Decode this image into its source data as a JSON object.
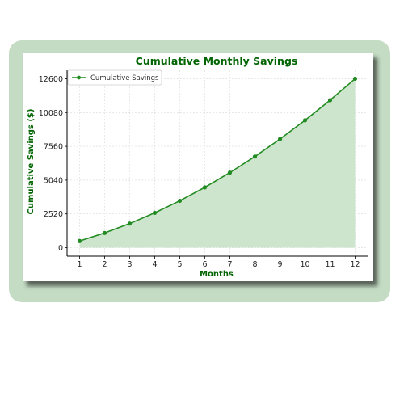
{
  "chart_data": {
    "type": "area",
    "title": "Cumulative Monthly Savings",
    "xlabel": "Months",
    "ylabel": "Cumulative Savings ($)",
    "x": [
      1,
      2,
      3,
      4,
      5,
      6,
      7,
      8,
      9,
      10,
      11,
      12
    ],
    "series": [
      {
        "name": "Cumulative Savings",
        "values": [
          500,
          1100,
          1800,
          2600,
          3500,
          4500,
          5600,
          6800,
          8100,
          9500,
          11000,
          12600
        ],
        "color": "#228B22",
        "fill_color": "#cde5cd"
      }
    ],
    "xticks": [
      "1",
      "2",
      "3",
      "4",
      "5",
      "6",
      "7",
      "8",
      "9",
      "10",
      "11",
      "12"
    ],
    "yticks": [
      "0",
      "2520",
      "5040",
      "7560",
      "10080",
      "12600"
    ],
    "ylim": [
      -630,
      13230
    ],
    "xlim": [
      0.5,
      12.5
    ],
    "grid": true,
    "legend_position": "top-left",
    "accent_color": "#006400"
  }
}
